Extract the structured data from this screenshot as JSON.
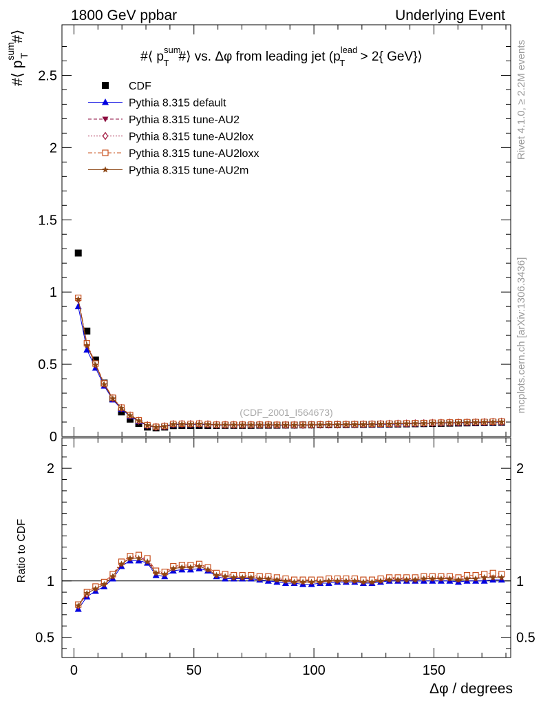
{
  "header": {
    "left": "1800 GeV ppbar",
    "right": "Underlying Event"
  },
  "side_text": {
    "rivet": "Rivet 4.1.0, ≥ 2.2M events",
    "mcplots": "mcplots.cern.ch [arXiv:1306.3436]"
  },
  "colors": {
    "CDF": "#000000",
    "default": "#0000e0",
    "AU2": "#8b0a3e",
    "AU2lox": "#a0143c",
    "AU2loxx": "#c8501e",
    "AU2m": "#8b4513"
  },
  "chart_data": [
    {
      "type": "scatter",
      "panel": "main",
      "title": "#⟨ p_T^sum #⟩ vs. Δφ from leading jet  (p_T^lead > 2{ GeV})",
      "title_parts": {
        "a": "#⟨ p",
        "a_sup": "sum",
        "a_sub": "T",
        "b": "#⟩ vs. Δφ from leading jet  (p",
        "b_sup": "lead",
        "b_sub": "T",
        "c": " > 2{ GeV}⟩"
      },
      "ylabel": {
        "a": "#⟨ p",
        "sup": "sum",
        "sub": "T",
        "b": "#⟩"
      },
      "watermark": "(CDF_2001_I564673)",
      "xlim": [
        -5,
        182
      ],
      "ylim": [
        0,
        2.85
      ],
      "yticks": [
        {
          "v": 0,
          "label": "0"
        },
        {
          "v": 0.5,
          "label": "0.5"
        },
        {
          "v": 1,
          "label": "1"
        },
        {
          "v": 1.5,
          "label": "1.5"
        },
        {
          "v": 2,
          "label": "2"
        },
        {
          "v": 2.5,
          "label": "2.5"
        }
      ],
      "x": [
        1.8,
        5.4,
        9.0,
        12.6,
        16.2,
        19.8,
        23.4,
        27.0,
        30.6,
        34.2,
        37.8,
        41.4,
        45.0,
        48.6,
        52.2,
        55.8,
        59.4,
        63.0,
        66.6,
        70.2,
        73.8,
        77.4,
        81.0,
        84.6,
        88.2,
        91.8,
        95.4,
        99.0,
        102.6,
        106.2,
        109.8,
        113.4,
        117.0,
        120.6,
        124.2,
        127.8,
        131.4,
        135.0,
        138.6,
        142.2,
        145.8,
        149.4,
        153.0,
        156.6,
        160.2,
        163.8,
        167.4,
        171.0,
        174.6,
        178.2
      ],
      "series": [
        {
          "name": "CDF",
          "key": "CDF",
          "marker": "square",
          "line": false,
          "values": [
            1.27,
            0.73,
            0.53,
            0.37,
            0.26,
            0.17,
            0.12,
            0.09,
            0.065,
            0.06,
            0.065,
            0.075,
            0.076,
            0.076,
            0.076,
            0.076,
            0.076,
            0.077,
            0.077,
            0.077,
            0.077,
            0.078,
            0.078,
            0.078,
            0.079,
            0.079,
            0.08,
            0.08,
            0.081,
            0.081,
            0.082,
            0.082,
            0.083,
            0.083,
            0.084,
            0.085,
            0.085,
            0.086,
            0.087,
            0.088,
            0.089,
            0.09,
            0.091,
            0.092,
            0.093,
            0.094,
            0.095,
            0.096,
            0.097,
            0.098
          ]
        },
        {
          "name": "Pythia 8.315 default",
          "key": "default",
          "marker": "triangle-up",
          "line": "solid",
          "values": [
            0.9,
            0.6,
            0.475,
            0.35,
            0.255,
            0.19,
            0.14,
            0.105,
            0.075,
            0.064,
            0.068,
            0.082,
            0.084,
            0.083,
            0.085,
            0.082,
            0.078,
            0.078,
            0.078,
            0.078,
            0.078,
            0.078,
            0.078,
            0.077,
            0.077,
            0.077,
            0.077,
            0.078,
            0.079,
            0.08,
            0.081,
            0.081,
            0.081,
            0.082,
            0.083,
            0.084,
            0.085,
            0.086,
            0.087,
            0.088,
            0.09,
            0.091,
            0.092,
            0.093,
            0.093,
            0.094,
            0.095,
            0.096,
            0.098,
            0.099
          ]
        },
        {
          "name": "Pythia 8.315 tune-AU2",
          "key": "AU2",
          "marker": "triangle-down",
          "line": "dashed",
          "values": [
            0.955,
            0.635,
            0.495,
            0.36,
            0.26,
            0.195,
            0.145,
            0.108,
            0.077,
            0.065,
            0.07,
            0.085,
            0.086,
            0.085,
            0.087,
            0.084,
            0.08,
            0.08,
            0.08,
            0.08,
            0.08,
            0.08,
            0.08,
            0.079,
            0.079,
            0.079,
            0.079,
            0.08,
            0.081,
            0.082,
            0.082,
            0.083,
            0.083,
            0.084,
            0.085,
            0.086,
            0.087,
            0.088,
            0.089,
            0.09,
            0.091,
            0.093,
            0.094,
            0.095,
            0.095,
            0.097,
            0.098,
            0.099,
            0.1,
            0.101
          ]
        },
        {
          "name": "Pythia 8.315 tune-AU2lox",
          "key": "AU2lox",
          "marker": "diamond-open",
          "line": "dotted",
          "values": [
            0.95,
            0.64,
            0.5,
            0.365,
            0.265,
            0.197,
            0.146,
            0.109,
            0.078,
            0.066,
            0.071,
            0.086,
            0.087,
            0.086,
            0.088,
            0.085,
            0.081,
            0.081,
            0.081,
            0.081,
            0.081,
            0.081,
            0.081,
            0.08,
            0.08,
            0.08,
            0.08,
            0.081,
            0.082,
            0.083,
            0.083,
            0.084,
            0.084,
            0.085,
            0.086,
            0.087,
            0.088,
            0.089,
            0.09,
            0.091,
            0.092,
            0.094,
            0.095,
            0.096,
            0.097,
            0.098,
            0.099,
            0.1,
            0.101,
            0.102
          ]
        },
        {
          "name": "Pythia 8.315 tune-AU2loxx",
          "key": "AU2loxx",
          "marker": "square-open",
          "line": "dashdot",
          "values": [
            0.96,
            0.645,
            0.505,
            0.368,
            0.268,
            0.2,
            0.148,
            0.112,
            0.079,
            0.067,
            0.072,
            0.087,
            0.088,
            0.087,
            0.089,
            0.086,
            0.082,
            0.082,
            0.082,
            0.082,
            0.082,
            0.082,
            0.082,
            0.081,
            0.081,
            0.081,
            0.081,
            0.082,
            0.083,
            0.084,
            0.084,
            0.085,
            0.085,
            0.086,
            0.087,
            0.088,
            0.089,
            0.09,
            0.091,
            0.092,
            0.093,
            0.095,
            0.096,
            0.097,
            0.098,
            0.099,
            0.1,
            0.101,
            0.103,
            0.104
          ]
        },
        {
          "name": "Pythia 8.315 tune-AU2m",
          "key": "AU2m",
          "marker": "star",
          "line": "solid",
          "values": [
            0.95,
            0.63,
            0.495,
            0.36,
            0.262,
            0.196,
            0.145,
            0.109,
            0.077,
            0.065,
            0.07,
            0.085,
            0.086,
            0.085,
            0.087,
            0.084,
            0.08,
            0.08,
            0.08,
            0.08,
            0.08,
            0.08,
            0.08,
            0.079,
            0.079,
            0.079,
            0.079,
            0.08,
            0.081,
            0.082,
            0.082,
            0.083,
            0.083,
            0.084,
            0.085,
            0.086,
            0.087,
            0.088,
            0.089,
            0.09,
            0.091,
            0.093,
            0.094,
            0.095,
            0.095,
            0.097,
            0.098,
            0.099,
            0.1,
            0.101
          ]
        }
      ]
    },
    {
      "type": "line",
      "panel": "ratio",
      "ylabel": "Ratio to CDF",
      "xlabel": "Δφ / degrees",
      "xlim": [
        -5,
        182
      ],
      "ylim": [
        0.32,
        2.27
      ],
      "xticks": [
        {
          "v": 0,
          "label": "0"
        },
        {
          "v": 50,
          "label": "50"
        },
        {
          "v": 100,
          "label": "100"
        },
        {
          "v": 150,
          "label": "150"
        }
      ],
      "yticks": [
        {
          "v": 0.5,
          "label": "0.5"
        },
        {
          "v": 1,
          "label": "1"
        },
        {
          "v": 2,
          "label": "2"
        }
      ],
      "reference": 1,
      "x": [
        1.8,
        5.4,
        9.0,
        12.6,
        16.2,
        19.8,
        23.4,
        27.0,
        30.6,
        34.2,
        37.8,
        41.4,
        45.0,
        48.6,
        52.2,
        55.8,
        59.4,
        63.0,
        66.6,
        70.2,
        73.8,
        77.4,
        81.0,
        84.6,
        88.2,
        91.8,
        95.4,
        99.0,
        102.6,
        106.2,
        109.8,
        113.4,
        117.0,
        120.6,
        124.2,
        127.8,
        131.4,
        135.0,
        138.6,
        142.2,
        145.8,
        149.4,
        153.0,
        156.6,
        160.2,
        163.8,
        167.4,
        171.0,
        174.6,
        178.2
      ],
      "series": [
        {
          "name": "Pythia 8.315 default",
          "key": "default",
          "marker": "triangle-up",
          "line": "solid",
          "values": [
            0.75,
            0.86,
            0.91,
            0.95,
            1.02,
            1.13,
            1.18,
            1.18,
            1.16,
            1.05,
            1.04,
            1.09,
            1.1,
            1.1,
            1.11,
            1.09,
            1.04,
            1.02,
            1.02,
            1.02,
            1.02,
            1.01,
            1.0,
            0.99,
            0.98,
            0.98,
            0.97,
            0.97,
            0.98,
            0.98,
            0.99,
            0.99,
            0.99,
            0.98,
            0.98,
            0.99,
            1.0,
            1.0,
            1.0,
            1.0,
            1.0,
            1.0,
            1.0,
            1.0,
            0.99,
            1.0,
            1.0,
            1.0,
            1.01,
            1.01
          ]
        },
        {
          "name": "Pythia 8.315 tune-AU2",
          "key": "AU2",
          "marker": "triangle-down",
          "line": "dashed",
          "values": [
            0.79,
            0.89,
            0.93,
            0.97,
            1.04,
            1.15,
            1.2,
            1.21,
            1.18,
            1.07,
            1.06,
            1.11,
            1.12,
            1.12,
            1.13,
            1.1,
            1.05,
            1.04,
            1.03,
            1.03,
            1.03,
            1.02,
            1.02,
            1.01,
            1.0,
            0.99,
            0.99,
            0.99,
            0.99,
            1.0,
            1.0,
            1.0,
            1.0,
            0.99,
            0.99,
            1.0,
            1.01,
            1.01,
            1.01,
            1.01,
            1.02,
            1.02,
            1.02,
            1.02,
            1.01,
            1.02,
            1.02,
            1.03,
            1.03,
            1.03
          ]
        },
        {
          "name": "Pythia 8.315 tune-AU2lox",
          "key": "AU2lox",
          "marker": "diamond-open",
          "line": "dotted",
          "values": [
            0.78,
            0.88,
            0.94,
            0.98,
            1.05,
            1.16,
            1.21,
            1.22,
            1.19,
            1.08,
            1.07,
            1.12,
            1.13,
            1.13,
            1.14,
            1.11,
            1.06,
            1.05,
            1.04,
            1.04,
            1.04,
            1.03,
            1.03,
            1.02,
            1.01,
            1.0,
            1.0,
            1.0,
            1.0,
            1.01,
            1.01,
            1.01,
            1.01,
            1.0,
            1.0,
            1.01,
            1.02,
            1.02,
            1.02,
            1.02,
            1.03,
            1.03,
            1.03,
            1.03,
            1.02,
            1.03,
            1.03,
            1.04,
            1.04,
            1.04
          ]
        },
        {
          "name": "Pythia 8.315 tune-AU2loxx",
          "key": "AU2loxx",
          "marker": "square-open",
          "line": "dashdot",
          "values": [
            0.79,
            0.9,
            0.95,
            0.99,
            1.06,
            1.17,
            1.22,
            1.23,
            1.2,
            1.09,
            1.08,
            1.13,
            1.14,
            1.14,
            1.15,
            1.12,
            1.07,
            1.06,
            1.05,
            1.05,
            1.05,
            1.04,
            1.04,
            1.03,
            1.02,
            1.01,
            1.01,
            1.01,
            1.01,
            1.02,
            1.02,
            1.02,
            1.02,
            1.01,
            1.01,
            1.02,
            1.03,
            1.03,
            1.03,
            1.03,
            1.04,
            1.04,
            1.04,
            1.04,
            1.03,
            1.05,
            1.05,
            1.06,
            1.07,
            1.06
          ]
        },
        {
          "name": "Pythia 8.315 tune-AU2m",
          "key": "AU2m",
          "marker": "star",
          "line": "solid",
          "values": [
            0.78,
            0.89,
            0.93,
            0.97,
            1.04,
            1.15,
            1.2,
            1.2,
            1.17,
            1.07,
            1.06,
            1.11,
            1.12,
            1.12,
            1.13,
            1.1,
            1.05,
            1.04,
            1.03,
            1.03,
            1.03,
            1.02,
            1.02,
            1.01,
            1.0,
            0.99,
            0.99,
            0.99,
            0.99,
            1.0,
            1.0,
            1.0,
            1.0,
            0.99,
            0.99,
            1.0,
            1.01,
            1.01,
            1.01,
            1.01,
            1.02,
            1.02,
            1.02,
            1.02,
            1.01,
            1.02,
            1.02,
            1.03,
            1.03,
            1.03
          ]
        }
      ]
    }
  ]
}
